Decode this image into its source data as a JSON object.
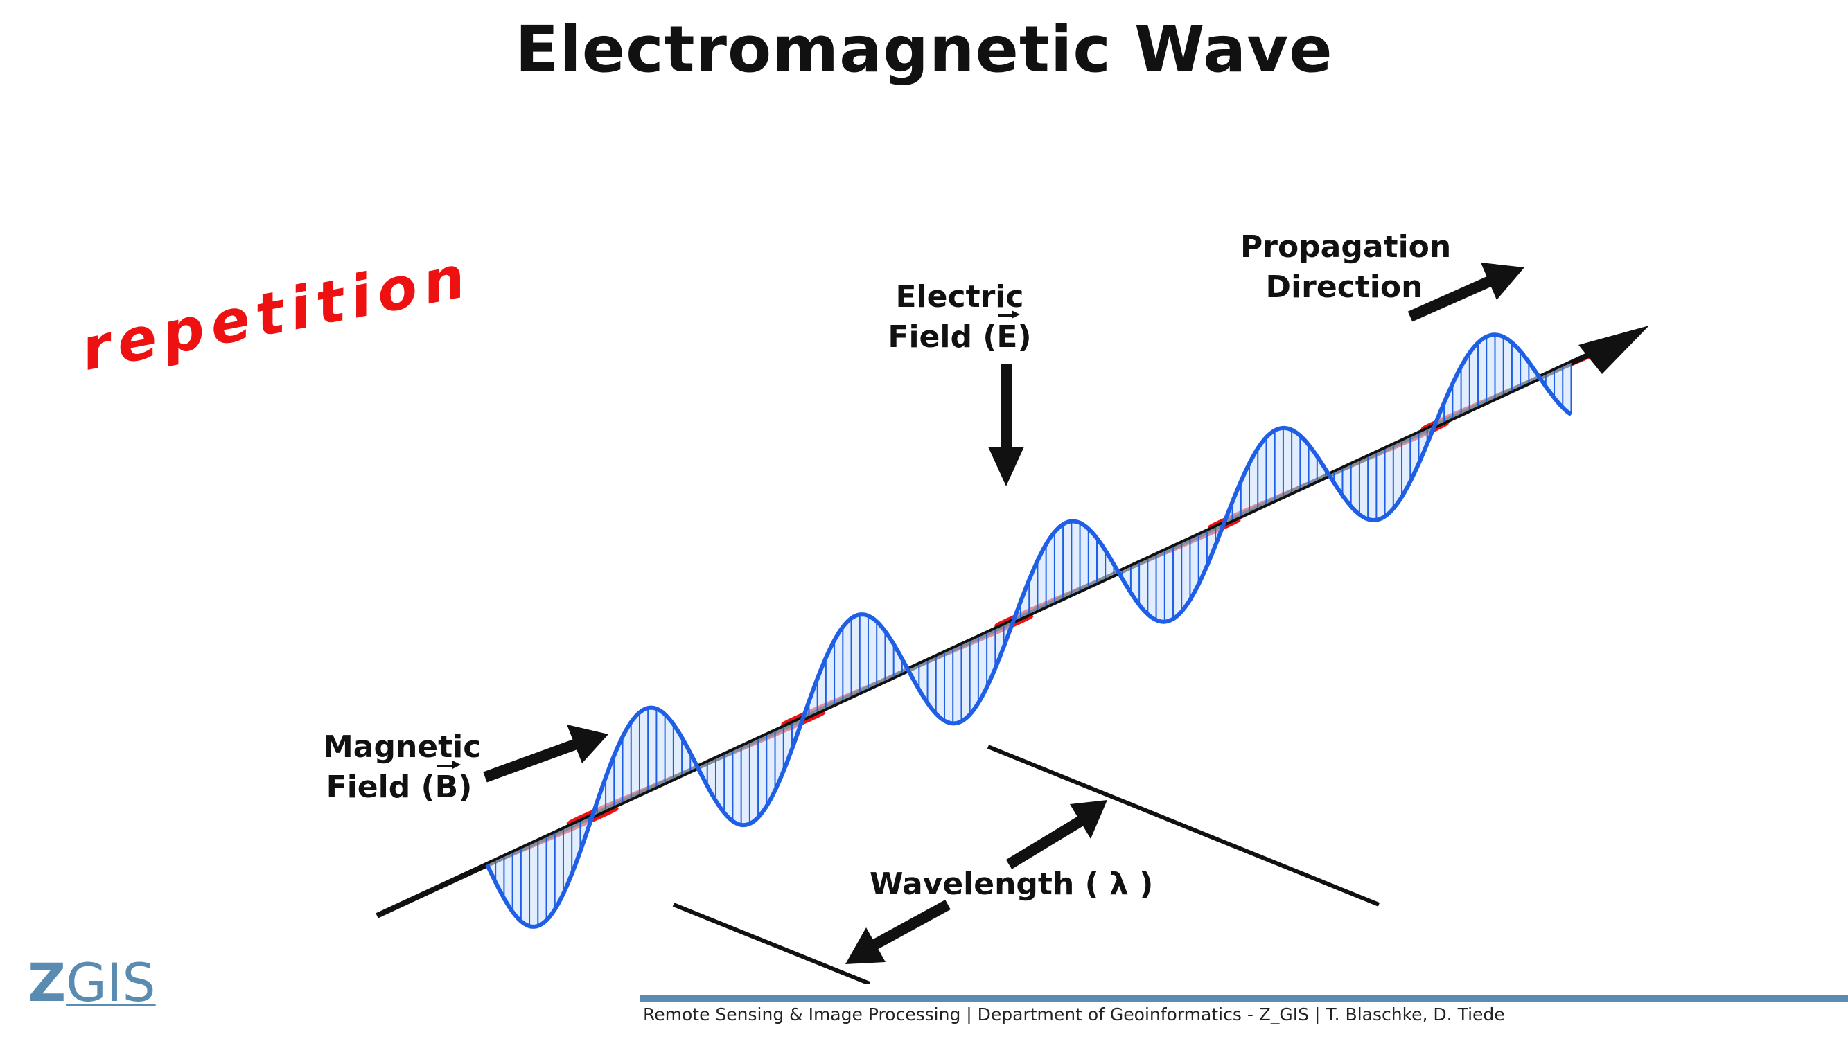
{
  "title": "Electromagnetic  Wave",
  "side_note": "repetition",
  "labels": {
    "electric_line1": "Electric",
    "electric_line2_prefix": "Field (",
    "electric_symbol": "E",
    "electric_line2_suffix": ")",
    "magnetic_line1": "Magnetic",
    "magnetic_line2_prefix": "Field (",
    "magnetic_symbol": "B",
    "magnetic_line2_suffix": ")",
    "propagation_line1": "Propagation",
    "propagation_line2": "Direction",
    "wavelength": "Wavelength ( λ )"
  },
  "logo": {
    "z": "Z",
    "gis": "GIS"
  },
  "footer": "Remote Sensing & Image Processing | Department of Geoinformatics - Z_GIS | T. Blaschke, D. Tiede",
  "colors": {
    "electric": "#1f5fe6",
    "electric_fill": "#cfe3fb",
    "magnetic": "#ee1111",
    "magnetic_fill": "#ffd3d3",
    "accent": "#5a8bb0",
    "highlight": "#ee1111"
  }
}
